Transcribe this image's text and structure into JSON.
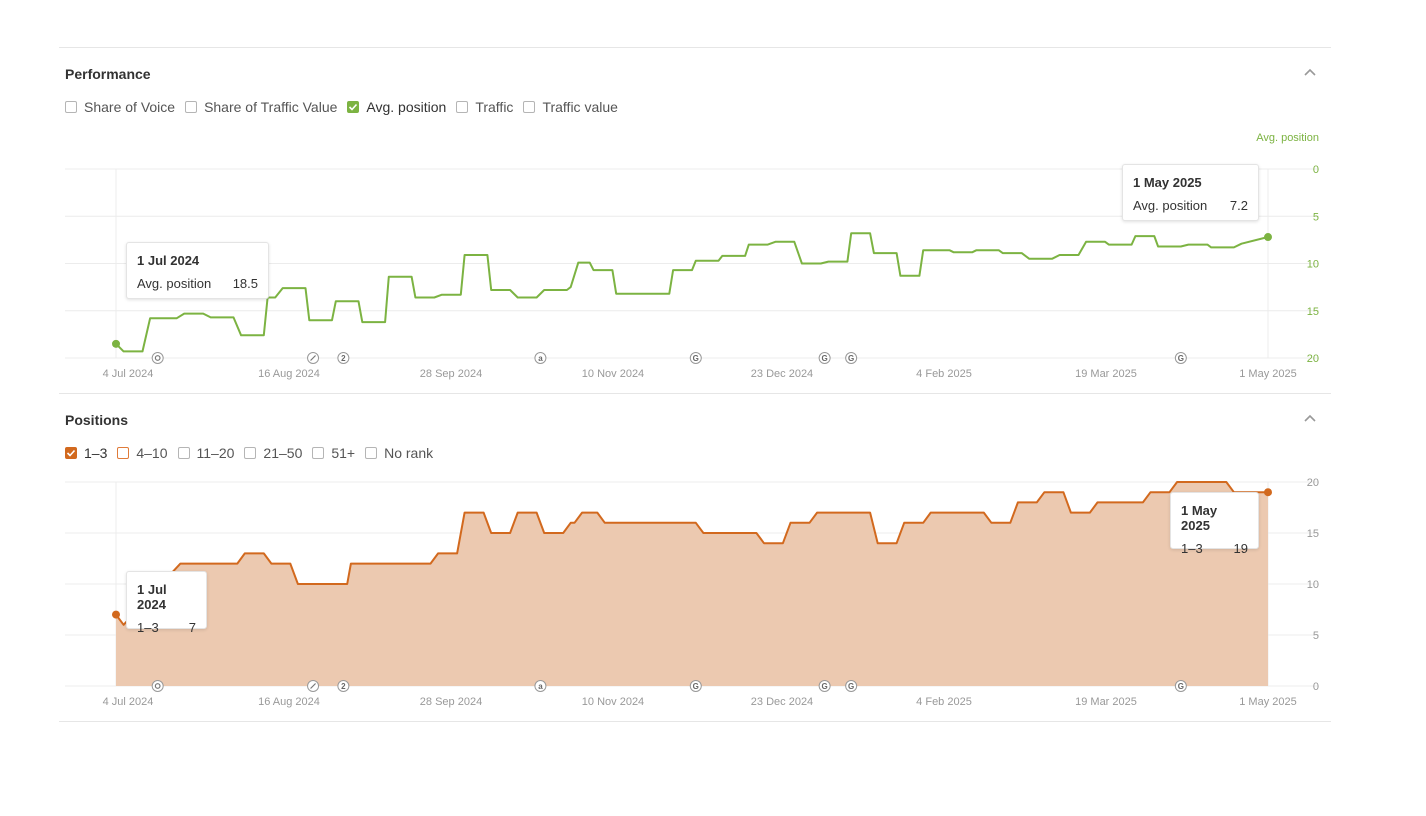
{
  "performance": {
    "title": "Performance",
    "metrics": [
      {
        "label": "Share of Voice",
        "checked": false
      },
      {
        "label": "Share of Traffic Value",
        "checked": false
      },
      {
        "label": "Avg. position",
        "checked": true
      },
      {
        "label": "Traffic",
        "checked": false
      },
      {
        "label": "Traffic value",
        "checked": false
      }
    ],
    "axis_title": "Avg. position",
    "tooltip_start": {
      "date": "1 Jul 2024",
      "label": "Avg. position",
      "value": "18.5"
    },
    "tooltip_end": {
      "date": "1 May 2025",
      "label": "Avg. position",
      "value": "7.2"
    }
  },
  "positions": {
    "title": "Positions",
    "filters": [
      {
        "label": "1–3",
        "state": "checked"
      },
      {
        "label": "4–10",
        "state": "highlight"
      },
      {
        "label": "11–20",
        "state": "unchecked"
      },
      {
        "label": "21–50",
        "state": "unchecked"
      },
      {
        "label": "51+",
        "state": "unchecked"
      },
      {
        "label": "No rank",
        "state": "unchecked"
      }
    ],
    "tooltip_start": {
      "date": "1 Jul 2024",
      "label": "1–3",
      "value": "7"
    },
    "tooltip_end": {
      "date": "1 May 2025",
      "label": "1–3",
      "value": "19"
    }
  },
  "annotation_markers": [
    {
      "day": 11,
      "icon": "gear"
    },
    {
      "day": 52,
      "icon": "pencil"
    },
    {
      "day": 60,
      "icon": "2"
    },
    {
      "day": 112,
      "icon": "a"
    },
    {
      "day": 153,
      "icon": "G"
    },
    {
      "day": 187,
      "icon": "G"
    },
    {
      "day": 194,
      "icon": "G"
    },
    {
      "day": 281,
      "icon": "G"
    }
  ],
  "colors": {
    "avg_position": "#7cb342",
    "positions_line": "#d2691e",
    "positions_fill": "#ecc9b0"
  },
  "chart_data": [
    {
      "type": "line",
      "series": [
        {
          "name": "Avg. position",
          "color": "#7cb342"
        }
      ],
      "x_ticks": [
        "4 Jul 2024",
        "16 Aug 2024",
        "28 Sep 2024",
        "10 Nov 2024",
        "23 Dec 2024",
        "4 Feb 2025",
        "19 Mar 2025",
        "1 May 2025"
      ],
      "y_ticks": [
        "0",
        "5",
        "10",
        "15",
        "20"
      ],
      "ylim": [
        0,
        20
      ],
      "y_inverted": true,
      "grid": true,
      "points": [
        [
          "2024-07-01",
          18.5
        ],
        [
          "2024-07-03",
          19.3
        ],
        [
          "2024-07-08",
          19.3
        ],
        [
          "2024-07-10",
          15.8
        ],
        [
          "2024-07-17",
          15.8
        ],
        [
          "2024-07-19",
          15.3
        ],
        [
          "2024-07-24",
          15.3
        ],
        [
          "2024-07-26",
          15.7
        ],
        [
          "2024-08-01",
          15.7
        ],
        [
          "2024-08-03",
          17.6
        ],
        [
          "2024-08-09",
          17.6
        ],
        [
          "2024-08-10",
          13.6
        ],
        [
          "2024-08-12",
          13.6
        ],
        [
          "2024-08-14",
          12.6
        ],
        [
          "2024-08-20",
          12.6
        ],
        [
          "2024-08-21",
          16.0
        ],
        [
          "2024-08-27",
          16.0
        ],
        [
          "2024-08-28",
          14.0
        ],
        [
          "2024-09-03",
          14.0
        ],
        [
          "2024-09-04",
          16.2
        ],
        [
          "2024-09-10",
          16.2
        ],
        [
          "2024-09-11",
          11.4
        ],
        [
          "2024-09-17",
          11.4
        ],
        [
          "2024-09-18",
          13.6
        ],
        [
          "2024-09-23",
          13.6
        ],
        [
          "2024-09-25",
          13.3
        ],
        [
          "2024-09-30",
          13.3
        ],
        [
          "2024-10-01",
          9.1
        ],
        [
          "2024-10-07",
          9.1
        ],
        [
          "2024-10-08",
          12.8
        ],
        [
          "2024-10-13",
          12.8
        ],
        [
          "2024-10-15",
          13.6
        ],
        [
          "2024-10-20",
          13.6
        ],
        [
          "2024-10-22",
          12.8
        ],
        [
          "2024-10-28",
          12.8
        ],
        [
          "2024-10-29",
          12.5
        ],
        [
          "2024-10-31",
          9.9
        ],
        [
          "2024-11-03",
          9.9
        ],
        [
          "2024-11-04",
          10.7
        ],
        [
          "2024-11-09",
          10.7
        ],
        [
          "2024-11-10",
          13.2
        ],
        [
          "2024-11-24",
          13.2
        ],
        [
          "2024-11-25",
          10.7
        ],
        [
          "2024-11-30",
          10.7
        ],
        [
          "2024-12-01",
          9.7
        ],
        [
          "2024-12-07",
          9.7
        ],
        [
          "2024-12-08",
          9.2
        ],
        [
          "2024-12-14",
          9.2
        ],
        [
          "2024-12-15",
          8.0
        ],
        [
          "2024-12-20",
          8.0
        ],
        [
          "2024-12-22",
          7.7
        ],
        [
          "2024-12-27",
          7.7
        ],
        [
          "2024-12-29",
          10.0
        ],
        [
          "2025-01-03",
          10.0
        ],
        [
          "2025-01-05",
          9.8
        ],
        [
          "2025-01-10",
          9.8
        ],
        [
          "2025-01-11",
          6.8
        ],
        [
          "2025-01-16",
          6.8
        ],
        [
          "2025-01-17",
          8.9
        ],
        [
          "2025-01-23",
          8.9
        ],
        [
          "2025-01-24",
          11.3
        ],
        [
          "2025-01-29",
          11.3
        ],
        [
          "2025-01-30",
          8.6
        ],
        [
          "2025-02-06",
          8.6
        ],
        [
          "2025-02-07",
          8.8
        ],
        [
          "2025-02-12",
          8.8
        ],
        [
          "2025-02-13",
          8.6
        ],
        [
          "2025-02-19",
          8.6
        ],
        [
          "2025-02-20",
          8.9
        ],
        [
          "2025-02-25",
          8.9
        ],
        [
          "2025-02-27",
          9.5
        ],
        [
          "2025-03-05",
          9.5
        ],
        [
          "2025-03-07",
          9.1
        ],
        [
          "2025-03-12",
          9.1
        ],
        [
          "2025-03-14",
          7.7
        ],
        [
          "2025-03-19",
          7.7
        ],
        [
          "2025-03-20",
          8.0
        ],
        [
          "2025-03-26",
          8.0
        ],
        [
          "2025-03-27",
          7.1
        ],
        [
          "2025-04-01",
          7.1
        ],
        [
          "2025-04-02",
          8.2
        ],
        [
          "2025-04-08",
          8.2
        ],
        [
          "2025-04-10",
          8.0
        ],
        [
          "2025-04-15",
          8.0
        ],
        [
          "2025-04-16",
          8.3
        ],
        [
          "2025-04-22",
          8.3
        ],
        [
          "2025-04-24",
          7.9
        ],
        [
          "2025-05-01",
          7.2
        ]
      ]
    },
    {
      "type": "area",
      "series": [
        {
          "name": "1–3",
          "color": "#d2691e"
        }
      ],
      "x_ticks": [
        "4 Jul 2024",
        "16 Aug 2024",
        "28 Sep 2024",
        "10 Nov 2024",
        "23 Dec 2024",
        "4 Feb 2025",
        "19 Mar 2025",
        "1 May 2025"
      ],
      "y_ticks": [
        "0",
        "5",
        "10",
        "15",
        "20"
      ],
      "ylim": [
        0,
        20
      ],
      "grid": true,
      "points": [
        [
          "2024-07-01",
          7
        ],
        [
          "2024-07-03",
          6
        ],
        [
          "2024-07-18",
          12
        ],
        [
          "2024-08-02",
          12
        ],
        [
          "2024-08-04",
          13
        ],
        [
          "2024-08-09",
          13
        ],
        [
          "2024-08-11",
          12
        ],
        [
          "2024-08-16",
          12
        ],
        [
          "2024-08-18",
          10
        ],
        [
          "2024-08-31",
          10
        ],
        [
          "2024-09-01",
          12
        ],
        [
          "2024-09-22",
          12
        ],
        [
          "2024-09-24",
          13
        ],
        [
          "2024-09-29",
          13
        ],
        [
          "2024-10-01",
          17
        ],
        [
          "2024-10-06",
          17
        ],
        [
          "2024-10-08",
          15
        ],
        [
          "2024-10-13",
          15
        ],
        [
          "2024-10-15",
          17
        ],
        [
          "2024-10-20",
          17
        ],
        [
          "2024-10-22",
          15
        ],
        [
          "2024-10-27",
          15
        ],
        [
          "2024-10-29",
          16
        ],
        [
          "2024-10-30",
          16
        ],
        [
          "2024-11-01",
          17
        ],
        [
          "2024-11-05",
          17
        ],
        [
          "2024-11-07",
          16
        ],
        [
          "2024-12-01",
          16
        ],
        [
          "2024-12-03",
          15
        ],
        [
          "2024-12-17",
          15
        ],
        [
          "2024-12-19",
          14
        ],
        [
          "2024-12-24",
          14
        ],
        [
          "2024-12-26",
          16
        ],
        [
          "2024-12-31",
          16
        ],
        [
          "2025-01-02",
          17
        ],
        [
          "2025-01-16",
          17
        ],
        [
          "2025-01-18",
          14
        ],
        [
          "2025-01-23",
          14
        ],
        [
          "2025-01-25",
          16
        ],
        [
          "2025-01-30",
          16
        ],
        [
          "2025-02-01",
          17
        ],
        [
          "2025-02-15",
          17
        ],
        [
          "2025-02-17",
          16
        ],
        [
          "2025-02-22",
          16
        ],
        [
          "2025-02-24",
          18
        ],
        [
          "2025-03-01",
          18
        ],
        [
          "2025-03-03",
          19
        ],
        [
          "2025-03-08",
          19
        ],
        [
          "2025-03-10",
          17
        ],
        [
          "2025-03-15",
          17
        ],
        [
          "2025-03-17",
          18
        ],
        [
          "2025-03-29",
          18
        ],
        [
          "2025-03-31",
          19
        ],
        [
          "2025-04-05",
          19
        ],
        [
          "2025-04-07",
          20
        ],
        [
          "2025-04-20",
          20
        ],
        [
          "2025-04-22",
          19
        ],
        [
          "2025-05-01",
          19
        ]
      ]
    }
  ]
}
